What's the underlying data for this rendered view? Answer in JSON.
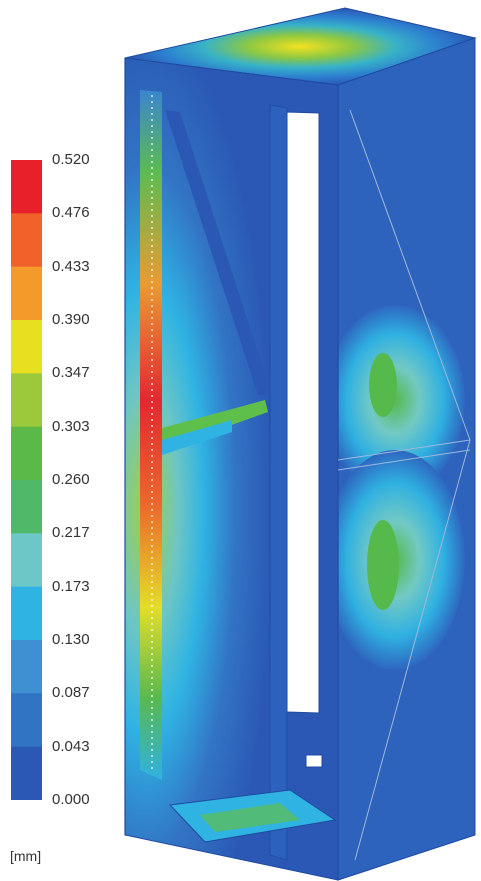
{
  "legend": {
    "unit": "[mm]",
    "ticks": [
      "0.520",
      "0.476",
      "0.433",
      "0.390",
      "0.347",
      "0.303",
      "0.260",
      "0.217",
      "0.173",
      "0.130",
      "0.087",
      "0.043",
      "0.000"
    ],
    "colors": [
      "#e8202a",
      "#f0622a",
      "#f39a2a",
      "#e9df21",
      "#9bc93b",
      "#5bb947",
      "#4fb869",
      "#6cc7c6",
      "#2fb3e3",
      "#3f8fd3",
      "#3274c4",
      "#2a58b4"
    ]
  }
}
